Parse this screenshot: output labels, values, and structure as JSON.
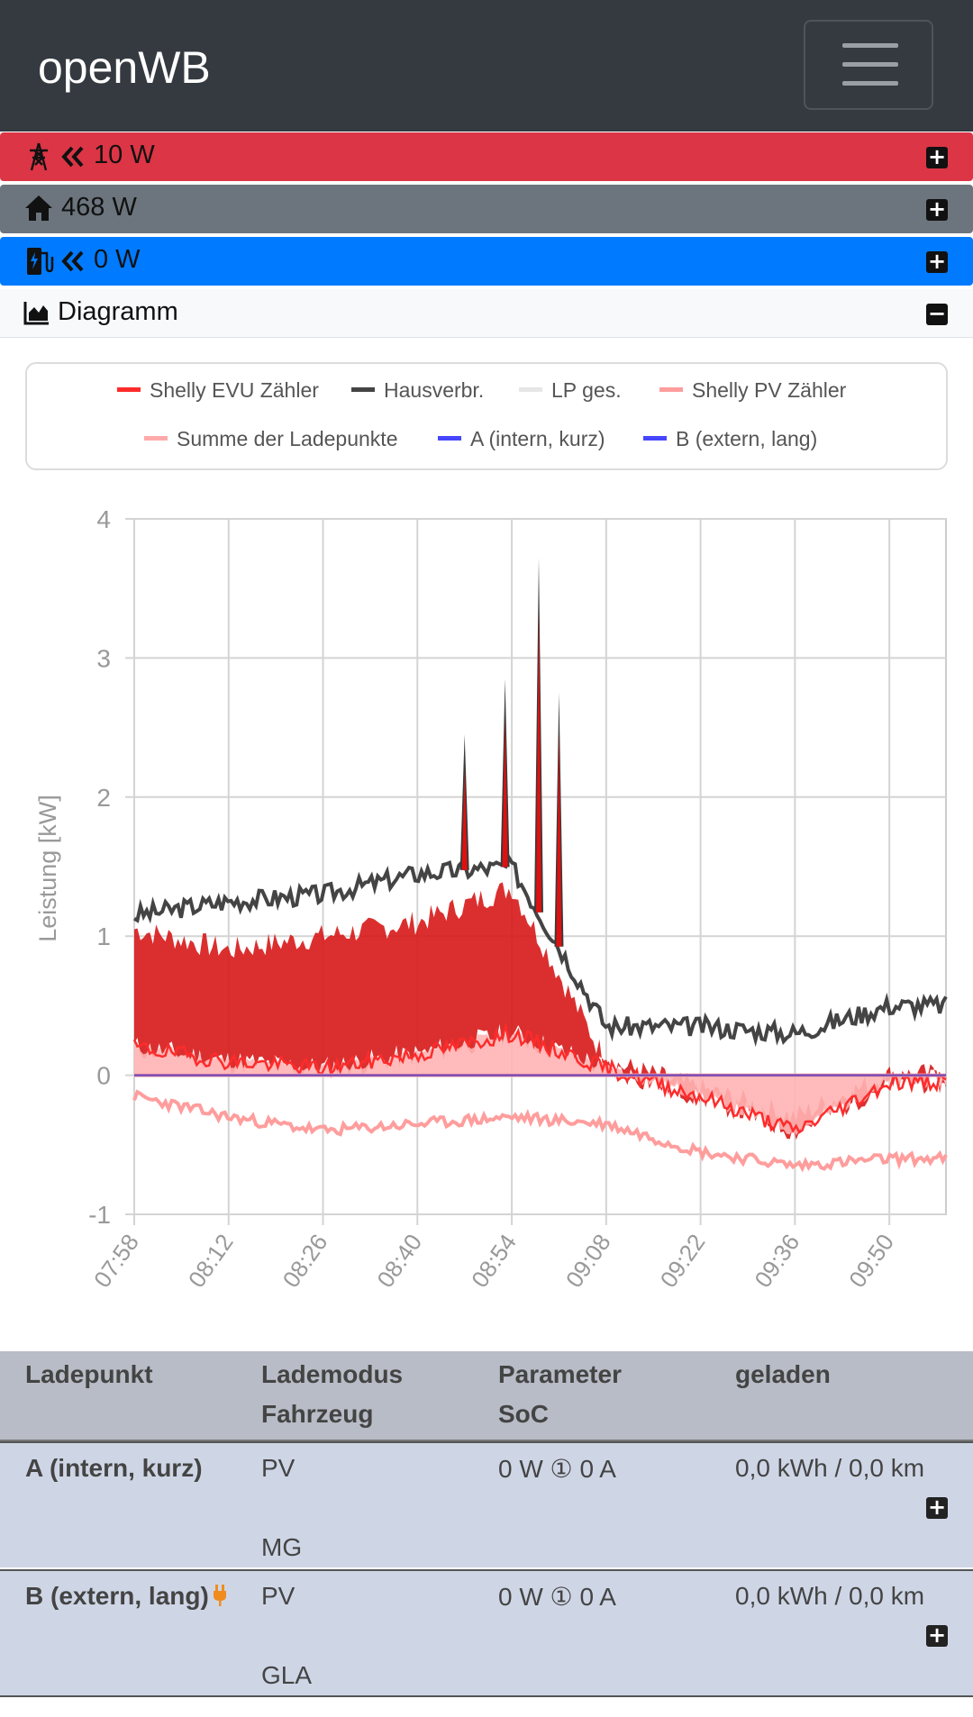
{
  "app": {
    "brand": "openWB"
  },
  "summary": {
    "grid": "10 W",
    "house": "468 W",
    "charge": "0 W",
    "diagram_title": "Diagramm"
  },
  "icons": {
    "grid": "power-tower-icon",
    "arrows": "double-left-arrow-icon",
    "house": "house-icon",
    "charge": "charging-station-icon",
    "chart": "area-chart-icon",
    "plug": "plug-icon"
  },
  "colors": {
    "grid": "#dc3545",
    "house": "#6c757d",
    "charge": "#007bff",
    "evu": "#ff2b2b",
    "hausverbr": "#444444",
    "lpges": "#e6e6e6",
    "pv": "#ff9d9d",
    "summe": "#ffaaaa",
    "lpA": "#4646ff",
    "lpB": "#4646ff"
  },
  "chart_data": {
    "type": "line",
    "ylabel": "Leistung [kW]",
    "ylim": [
      -1,
      4
    ],
    "yticks": [
      "4",
      "3",
      "2",
      "1",
      "0",
      "-1"
    ],
    "x": [
      "07:58",
      "08:12",
      "08:26",
      "08:40",
      "08:54",
      "09:08",
      "09:22",
      "09:36",
      "09:50"
    ],
    "legend": [
      "Shelly EVU Zähler",
      "Hausverbr.",
      "LP ges.",
      "Shelly PV Zähler",
      "Summe der Ladepunkte",
      "A (intern, kurz)",
      "B (extern, lang)"
    ],
    "series": [
      {
        "name": "Hausverbr.",
        "values": [
          1.15,
          1.25,
          1.3,
          1.45,
          1.5,
          0.35,
          0.35,
          0.3,
          0.5
        ],
        "peaks": [
          {
            "x": "08:47",
            "y": 2.45
          },
          {
            "x": "08:53",
            "y": 2.85
          },
          {
            "x": "08:58",
            "y": 3.72
          },
          {
            "x": "09:01",
            "y": 2.75
          }
        ]
      },
      {
        "name": "Shelly EVU Zähler",
        "values": [
          0.2,
          0.1,
          0.05,
          0.15,
          0.3,
          0.05,
          -0.15,
          -0.4,
          -0.05
        ],
        "upper": [
          1.05,
          0.9,
          1.0,
          1.1,
          1.35,
          0.1,
          -0.1,
          -0.3,
          0.0
        ]
      },
      {
        "name": "Shelly PV Zähler",
        "values": [
          -0.15,
          -0.3,
          -0.4,
          -0.35,
          -0.3,
          -0.35,
          -0.55,
          -0.65,
          -0.6
        ]
      },
      {
        "name": "LP ges.",
        "values": [
          0,
          0,
          0,
          0,
          0,
          0,
          0,
          0,
          0
        ]
      },
      {
        "name": "Summe der Ladepunkte",
        "values": [
          0,
          0,
          0,
          0,
          0,
          0,
          0,
          0,
          0
        ]
      },
      {
        "name": "A (intern, kurz)",
        "values": [
          0,
          0,
          0,
          0,
          0,
          0,
          0,
          0,
          0
        ]
      },
      {
        "name": "B (extern, lang)",
        "values": [
          0,
          0,
          0,
          0,
          0,
          0,
          0,
          0,
          0
        ]
      }
    ]
  },
  "table": {
    "headers": {
      "col1": "Ladepunkt",
      "col2a": "Lademodus",
      "col2b": "Fahrzeug",
      "col3a": "Parameter",
      "col3b": "SoC",
      "col4": "geladen"
    },
    "rows": [
      {
        "name": "A (intern, kurz)",
        "mode": "PV",
        "param": "0 W ① 0 A",
        "charged": "0,0 kWh / 0,0 km",
        "vehicle": "MG"
      },
      {
        "name": "B (extern, lang)",
        "mode": "PV",
        "param": "0 W ① 0 A",
        "charged": "0,0 kWh / 0,0 km",
        "vehicle": "GLA"
      }
    ]
  }
}
